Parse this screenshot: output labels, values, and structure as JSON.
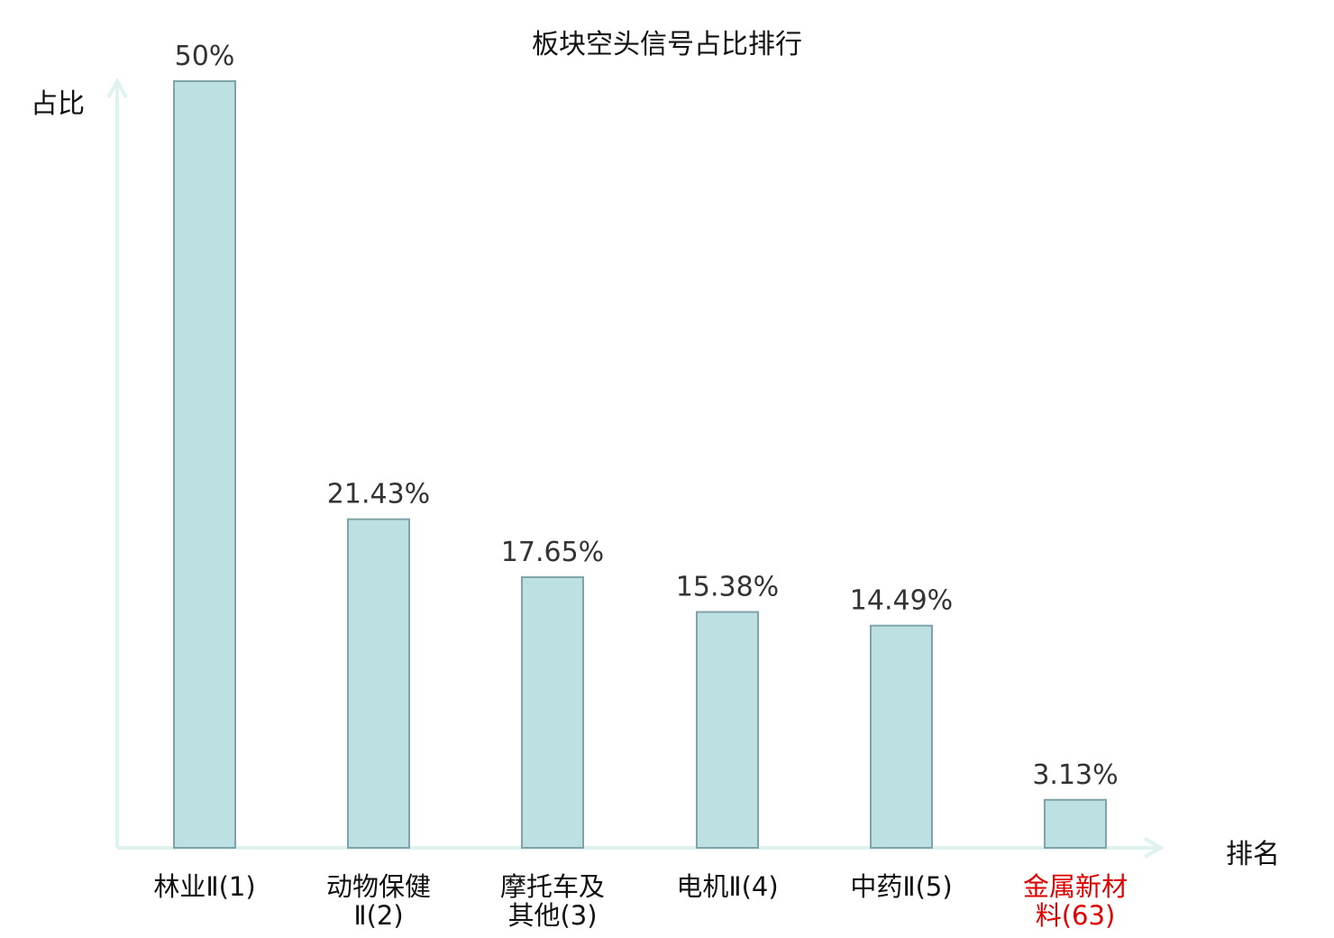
{
  "chart_data": {
    "type": "bar",
    "title": "板块空头信号占比排行",
    "ylabel": "占比",
    "xlabel": "排名",
    "categories": [
      [
        "林业Ⅱ(1)"
      ],
      [
        "动物保健",
        "Ⅱ(2)"
      ],
      [
        "摩托车及",
        "其他(3)"
      ],
      [
        "电机Ⅱ(4)"
      ],
      [
        "中药Ⅱ(5)"
      ],
      [
        "金属新材",
        "料(63)"
      ]
    ],
    "values": [
      50,
      21.43,
      17.65,
      15.38,
      14.49,
      3.13
    ],
    "value_labels": [
      "50%",
      "21.43%",
      "17.65%",
      "15.38%",
      "14.49%",
      "3.13%"
    ],
    "highlight_index": 5,
    "ylim": [
      0,
      50
    ],
    "grid": false,
    "colors": {
      "bar_fill": "#bde0e3",
      "bar_stroke": "#7fa3a8",
      "axis": "#dff2ef",
      "label": "#111111",
      "value_label": "#333333",
      "highlight": "#e00000"
    }
  }
}
